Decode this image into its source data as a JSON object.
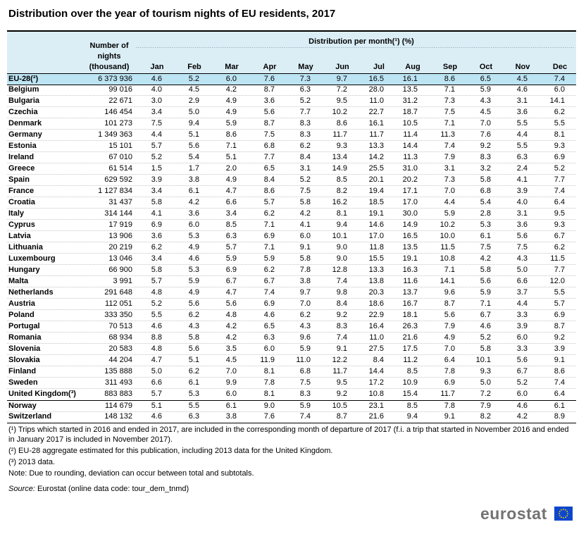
{
  "title": "Distribution over the year of tourism nights of EU residents, 2017",
  "header": {
    "nights": "Number of nights (thousand)",
    "distribution": "Distribution per month(¹) (%)",
    "months": [
      "Jan",
      "Feb",
      "Mar",
      "Apr",
      "May",
      "Jun",
      "Jul",
      "Aug",
      "Sep",
      "Oct",
      "Nov",
      "Dec"
    ]
  },
  "rows": [
    {
      "name": "EU-28(²)",
      "nights": "6 373 936",
      "vals": [
        "4.6",
        "5.2",
        "6.0",
        "7.6",
        "7.3",
        "9.7",
        "16.5",
        "16.1",
        "8.6",
        "6.5",
        "4.5",
        "7.4"
      ]
    },
    {
      "name": "Belgium",
      "nights": "99 016",
      "vals": [
        "4.0",
        "4.5",
        "4.2",
        "8.7",
        "6.3",
        "7.2",
        "28.0",
        "13.5",
        "7.1",
        "5.9",
        "4.6",
        "6.0"
      ]
    },
    {
      "name": "Bulgaria",
      "nights": "22 671",
      "vals": [
        "3.0",
        "2.9",
        "4.9",
        "3.6",
        "5.2",
        "9.5",
        "11.0",
        "31.2",
        "7.3",
        "4.3",
        "3.1",
        "14.1"
      ]
    },
    {
      "name": "Czechia",
      "nights": "146 454",
      "vals": [
        "3.4",
        "5.0",
        "4.9",
        "5.6",
        "7.7",
        "10.2",
        "22.7",
        "18.7",
        "7.5",
        "4.5",
        "3.6",
        "6.2"
      ]
    },
    {
      "name": "Denmark",
      "nights": "101 273",
      "vals": [
        "7.5",
        "9.4",
        "5.9",
        "8.7",
        "8.3",
        "8.6",
        "16.1",
        "10.5",
        "7.1",
        "7.0",
        "5.5",
        "5.5"
      ]
    },
    {
      "name": "Germany",
      "nights": "1 349 363",
      "vals": [
        "4.4",
        "5.1",
        "8.6",
        "7.5",
        "8.3",
        "11.7",
        "11.7",
        "11.4",
        "11.3",
        "7.6",
        "4.4",
        "8.1"
      ]
    },
    {
      "name": "Estonia",
      "nights": "15 101",
      "vals": [
        "5.7",
        "5.6",
        "7.1",
        "6.8",
        "6.2",
        "9.3",
        "13.3",
        "14.4",
        "7.4",
        "9.2",
        "5.5",
        "9.3"
      ]
    },
    {
      "name": "Ireland",
      "nights": "67 010",
      "vals": [
        "5.2",
        "5.4",
        "5.1",
        "7.7",
        "8.4",
        "13.4",
        "14.2",
        "11.3",
        "7.9",
        "8.3",
        "6.3",
        "6.9"
      ]
    },
    {
      "name": "Greece",
      "nights": "61 514",
      "vals": [
        "1.5",
        "1.7",
        "2.0",
        "6.5",
        "3.1",
        "14.9",
        "25.5",
        "31.0",
        "3.1",
        "3.2",
        "2.4",
        "5.2"
      ]
    },
    {
      "name": "Spain",
      "nights": "629 592",
      "vals": [
        "3.9",
        "3.8",
        "4.9",
        "8.4",
        "5.2",
        "8.5",
        "20.1",
        "20.2",
        "7.3",
        "5.8",
        "4.1",
        "7.7"
      ]
    },
    {
      "name": "France",
      "nights": "1 127 834",
      "vals": [
        "3.4",
        "6.1",
        "4.7",
        "8.6",
        "7.5",
        "8.2",
        "19.4",
        "17.1",
        "7.0",
        "6.8",
        "3.9",
        "7.4"
      ]
    },
    {
      "name": "Croatia",
      "nights": "31 437",
      "vals": [
        "5.8",
        "4.2",
        "6.6",
        "5.7",
        "5.8",
        "16.2",
        "18.5",
        "17.0",
        "4.4",
        "5.4",
        "4.0",
        "6.4"
      ]
    },
    {
      "name": "Italy",
      "nights": "314 144",
      "vals": [
        "4.1",
        "3.6",
        "3.4",
        "6.2",
        "4.2",
        "8.1",
        "19.1",
        "30.0",
        "5.9",
        "2.8",
        "3.1",
        "9.5"
      ]
    },
    {
      "name": "Cyprus",
      "nights": "17 919",
      "vals": [
        "6.9",
        "6.0",
        "8.5",
        "7.1",
        "4.1",
        "9.4",
        "14.6",
        "14.9",
        "10.2",
        "5.3",
        "3.6",
        "9.3"
      ]
    },
    {
      "name": "Latvia",
      "nights": "13 906",
      "vals": [
        "3.6",
        "5.3",
        "6.3",
        "6.9",
        "6.0",
        "10.1",
        "17.0",
        "16.5",
        "10.0",
        "6.1",
        "5.6",
        "6.7"
      ]
    },
    {
      "name": "Lithuania",
      "nights": "20 219",
      "vals": [
        "6.2",
        "4.9",
        "5.7",
        "7.1",
        "9.1",
        "9.0",
        "11.8",
        "13.5",
        "11.5",
        "7.5",
        "7.5",
        "6.2"
      ]
    },
    {
      "name": "Luxembourg",
      "nights": "13 046",
      "vals": [
        "3.4",
        "4.6",
        "5.9",
        "5.9",
        "5.8",
        "9.0",
        "15.5",
        "19.1",
        "10.8",
        "4.2",
        "4.3",
        "11.5"
      ]
    },
    {
      "name": "Hungary",
      "nights": "66 900",
      "vals": [
        "5.8",
        "5.3",
        "6.9",
        "6.2",
        "7.8",
        "12.8",
        "13.3",
        "16.3",
        "7.1",
        "5.8",
        "5.0",
        "7.7"
      ]
    },
    {
      "name": "Malta",
      "nights": "3 991",
      "vals": [
        "5.7",
        "5.9",
        "6.7",
        "6.7",
        "3.8",
        "7.4",
        "13.8",
        "11.6",
        "14.1",
        "5.6",
        "6.6",
        "12.0"
      ]
    },
    {
      "name": "Netherlands",
      "nights": "291 648",
      "vals": [
        "4.8",
        "4.9",
        "4.7",
        "7.4",
        "9.7",
        "9.8",
        "20.3",
        "13.7",
        "9.6",
        "5.9",
        "3.7",
        "5.5"
      ]
    },
    {
      "name": "Austria",
      "nights": "112 051",
      "vals": [
        "5.2",
        "5.6",
        "5.6",
        "6.9",
        "7.0",
        "8.4",
        "18.6",
        "16.7",
        "8.7",
        "7.1",
        "4.4",
        "5.7"
      ]
    },
    {
      "name": "Poland",
      "nights": "333 350",
      "vals": [
        "5.5",
        "6.2",
        "4.8",
        "4.6",
        "6.2",
        "9.2",
        "22.9",
        "18.1",
        "5.6",
        "6.7",
        "3.3",
        "6.9"
      ]
    },
    {
      "name": "Portugal",
      "nights": "70 513",
      "vals": [
        "4.6",
        "4.3",
        "4.2",
        "6.5",
        "4.3",
        "8.3",
        "16.4",
        "26.3",
        "7.9",
        "4.6",
        "3.9",
        "8.7"
      ]
    },
    {
      "name": "Romania",
      "nights": "68 934",
      "vals": [
        "8.8",
        "5.8",
        "4.2",
        "6.3",
        "9.6",
        "7.4",
        "11.0",
        "21.6",
        "4.9",
        "5.2",
        "6.0",
        "9.2"
      ]
    },
    {
      "name": "Slovenia",
      "nights": "20 583",
      "vals": [
        "4.8",
        "5.6",
        "3.5",
        "6.0",
        "5.9",
        "9.1",
        "27.5",
        "17.5",
        "7.0",
        "5.8",
        "3.3",
        "3.9"
      ]
    },
    {
      "name": "Slovakia",
      "nights": "44 204",
      "vals": [
        "4.7",
        "5.1",
        "4.5",
        "11.9",
        "11.0",
        "12.2",
        "8.4",
        "11.2",
        "6.4",
        "10.1",
        "5.6",
        "9.1"
      ]
    },
    {
      "name": "Finland",
      "nights": "135 888",
      "vals": [
        "5.0",
        "6.2",
        "7.0",
        "8.1",
        "6.8",
        "11.7",
        "14.4",
        "8.5",
        "7.8",
        "9.3",
        "6.7",
        "8.6"
      ]
    },
    {
      "name": "Sweden",
      "nights": "311 493",
      "vals": [
        "6.6",
        "6.1",
        "9.9",
        "7.8",
        "7.5",
        "9.5",
        "17.2",
        "10.9",
        "6.9",
        "5.0",
        "5.2",
        "7.4"
      ]
    },
    {
      "name": "United Kingdom(³)",
      "nights": "883 883",
      "vals": [
        "5.7",
        "5.3",
        "6.0",
        "8.1",
        "8.3",
        "9.2",
        "10.8",
        "15.4",
        "11.7",
        "7.2",
        "6.0",
        "6.4"
      ]
    },
    {
      "name": "Norway",
      "nights": "114 679",
      "vals": [
        "5.1",
        "5.5",
        "6.1",
        "9.0",
        "5.9",
        "10.5",
        "23.1",
        "8.5",
        "7.8",
        "7.9",
        "4.6",
        "6.1"
      ]
    },
    {
      "name": "Switzerland",
      "nights": "148 132",
      "vals": [
        "4.6",
        "6.3",
        "3.8",
        "7.6",
        "7.4",
        "8.7",
        "21.6",
        "9.4",
        "9.1",
        "8.2",
        "4.2",
        "8.9"
      ]
    }
  ],
  "notes": [
    "(¹) Trips which started in 2016 and ended in 2017, are included in the corresponding month of departure of 2017 (f.i. a trip that started in November 2016 and ended in January 2017 is included in November 2017).",
    "(²) EU-28 aggregate estimated for this publication, including 2013 data for the United Kingdom.",
    "(³) 2013 data.",
    "Note: Due to rounding, deviation can occur between total and subtotals."
  ],
  "source": {
    "label": "Source:",
    "text": " Eurostat (online data code: tour_dem_tnmd)"
  },
  "logo": {
    "text": "eurostat"
  }
}
